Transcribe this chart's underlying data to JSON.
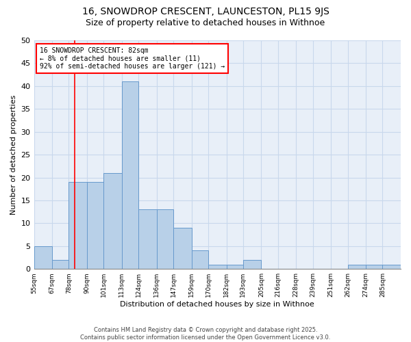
{
  "title1": "16, SNOWDROP CRESCENT, LAUNCESTON, PL15 9JS",
  "title2": "Size of property relative to detached houses in Withnoe",
  "xlabel": "Distribution of detached houses by size in Withnoe",
  "ylabel": "Number of detached properties",
  "bar_color": "#b8d0e8",
  "bar_edge_color": "#6699cc",
  "background_color": "#e8eff8",
  "bins": [
    55,
    67,
    78,
    90,
    101,
    113,
    124,
    136,
    147,
    159,
    170,
    182,
    193,
    205,
    216,
    228,
    239,
    251,
    262,
    274,
    285,
    297
  ],
  "bin_labels": [
    "55sqm",
    "67sqm",
    "78sqm",
    "90sqm",
    "101sqm",
    "113sqm",
    "124sqm",
    "136sqm",
    "147sqm",
    "159sqm",
    "170sqm",
    "182sqm",
    "193sqm",
    "205sqm",
    "216sqm",
    "228sqm",
    "239sqm",
    "251sqm",
    "262sqm",
    "274sqm",
    "285sqm"
  ],
  "values": [
    5,
    2,
    19,
    19,
    21,
    41,
    13,
    13,
    9,
    4,
    1,
    1,
    2,
    0,
    0,
    0,
    0,
    0,
    1,
    1,
    1
  ],
  "red_line_x": 82,
  "ylim": [
    0,
    50
  ],
  "yticks": [
    0,
    5,
    10,
    15,
    20,
    25,
    30,
    35,
    40,
    45,
    50
  ],
  "annotation_line1": "16 SNOWDROP CRESCENT: 82sqm",
  "annotation_line2": "← 8% of detached houses are smaller (11)",
  "annotation_line3": "92% of semi-detached houses are larger (121) →",
  "grid_color": "#c8d8ec",
  "title1_fontsize": 10,
  "title2_fontsize": 9,
  "footer_text": "Contains HM Land Registry data © Crown copyright and database right 2025.\nContains public sector information licensed under the Open Government Licence v3.0."
}
